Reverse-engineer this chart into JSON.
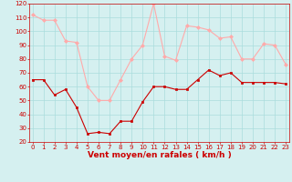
{
  "x": [
    0,
    1,
    2,
    3,
    4,
    5,
    6,
    7,
    8,
    9,
    10,
    11,
    12,
    13,
    14,
    15,
    16,
    17,
    18,
    19,
    20,
    21,
    22,
    23
  ],
  "vent_moyen": [
    65,
    65,
    54,
    58,
    45,
    26,
    27,
    26,
    35,
    35,
    49,
    60,
    60,
    58,
    58,
    65,
    72,
    68,
    70,
    63,
    63,
    63,
    63,
    62
  ],
  "rafales": [
    112,
    108,
    108,
    93,
    92,
    60,
    50,
    50,
    65,
    80,
    90,
    120,
    82,
    79,
    104,
    103,
    101,
    95,
    96,
    80,
    80,
    91,
    90,
    76
  ],
  "xlabel": "Vent moyen/en rafales ( km/h )",
  "ylim": [
    20,
    120
  ],
  "yticks": [
    20,
    30,
    40,
    50,
    60,
    70,
    80,
    90,
    100,
    110,
    120
  ],
  "xticks": [
    0,
    1,
    2,
    3,
    4,
    5,
    6,
    7,
    8,
    9,
    10,
    11,
    12,
    13,
    14,
    15,
    16,
    17,
    18,
    19,
    20,
    21,
    22,
    23
  ],
  "color_moyen": "#cc0000",
  "color_rafales": "#ffaaaa",
  "bg_color": "#d5f0f0",
  "grid_color": "#aadddd",
  "axis_color": "#cc0000",
  "label_color": "#cc0000",
  "tick_fontsize": 5.0,
  "xlabel_fontsize": 6.5
}
